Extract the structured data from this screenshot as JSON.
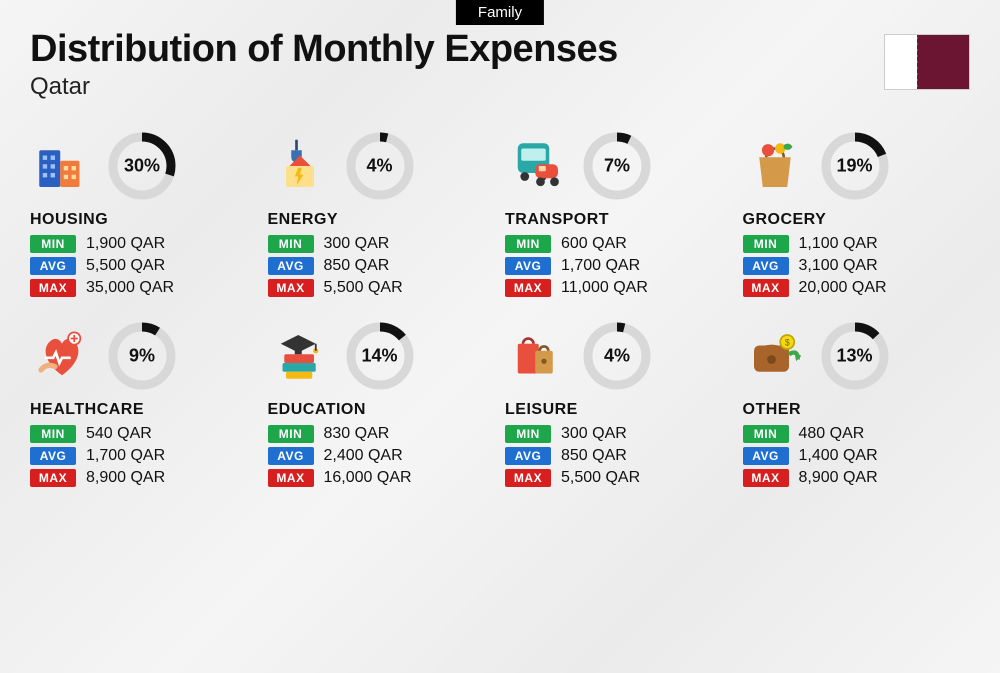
{
  "tag": "Family",
  "title": "Distribution of Monthly Expenses",
  "subtitle": "Qatar",
  "flag": {
    "left_color": "#ffffff",
    "right_color": "#6b1533"
  },
  "labels": {
    "min": "MIN",
    "avg": "AVG",
    "max": "MAX"
  },
  "colors": {
    "min": "#1ea64b",
    "avg": "#1f6fd1",
    "max": "#d81f1f",
    "donut_bg": "#d8d8d8",
    "donut_fg": "#111111",
    "text": "#111111"
  },
  "donut": {
    "radius": 29,
    "stroke_width": 9,
    "size": 68
  },
  "currency_suffix": " QAR",
  "categories": [
    {
      "key": "housing",
      "name": "HOUSING",
      "percent": 30,
      "min": "1,900",
      "avg": "5,500",
      "max": "35,000",
      "icon": "housing"
    },
    {
      "key": "energy",
      "name": "ENERGY",
      "percent": 4,
      "min": "300",
      "avg": "850",
      "max": "5,500",
      "icon": "energy"
    },
    {
      "key": "transport",
      "name": "TRANSPORT",
      "percent": 7,
      "min": "600",
      "avg": "1,700",
      "max": "11,000",
      "icon": "transport"
    },
    {
      "key": "grocery",
      "name": "GROCERY",
      "percent": 19,
      "min": "1,100",
      "avg": "3,100",
      "max": "20,000",
      "icon": "grocery"
    },
    {
      "key": "healthcare",
      "name": "HEALTHCARE",
      "percent": 9,
      "min": "540",
      "avg": "1,700",
      "max": "8,900",
      "icon": "healthcare"
    },
    {
      "key": "education",
      "name": "EDUCATION",
      "percent": 14,
      "min": "830",
      "avg": "2,400",
      "max": "16,000",
      "icon": "education"
    },
    {
      "key": "leisure",
      "name": "LEISURE",
      "percent": 4,
      "min": "300",
      "avg": "850",
      "max": "5,500",
      "icon": "leisure"
    },
    {
      "key": "other",
      "name": "OTHER",
      "percent": 13,
      "min": "480",
      "avg": "1,400",
      "max": "8,900",
      "icon": "other"
    }
  ]
}
